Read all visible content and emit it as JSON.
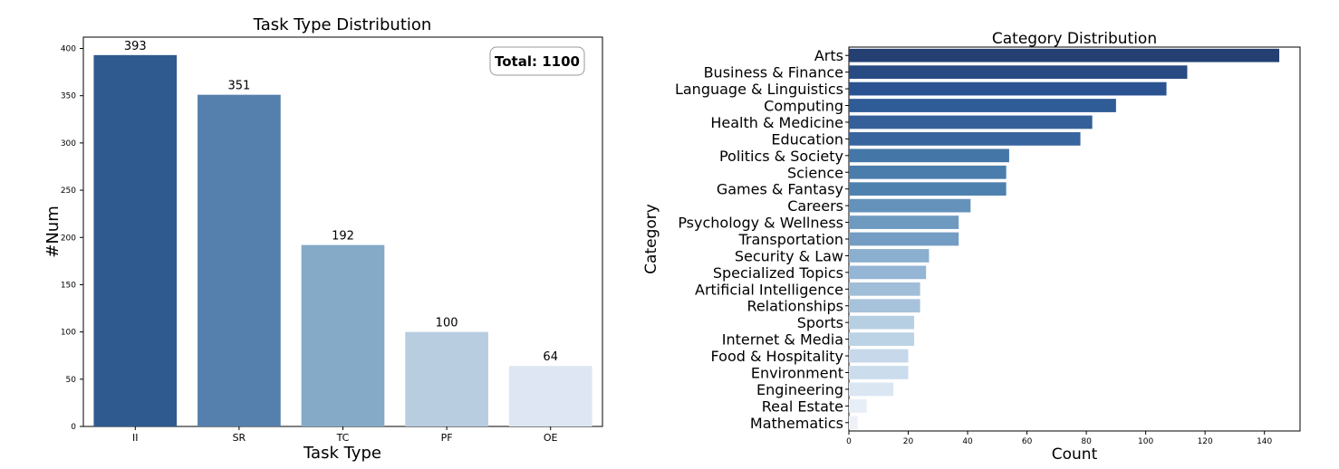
{
  "chart_data": [
    {
      "type": "bar",
      "title": "Task Type Distribution",
      "xlabel": "Task Type",
      "ylabel": "#Num",
      "categories": [
        "II",
        "SR",
        "TC",
        "PF",
        "OE"
      ],
      "values": [
        393,
        351,
        192,
        100,
        64
      ],
      "data_labels": [
        "393",
        "351",
        "192",
        "100",
        "64"
      ],
      "colors": [
        "#2f5a8f",
        "#5580ad",
        "#85aac7",
        "#b8cddf",
        "#dde6f2"
      ],
      "ylim": [
        0,
        412
      ],
      "yticks": [
        0,
        50,
        100,
        150,
        200,
        250,
        300,
        350,
        400
      ],
      "annotation": "Total: 1100",
      "annotation_position": "top-right",
      "grid": false
    },
    {
      "type": "bar",
      "orientation": "horizontal",
      "title": "Category Distribution",
      "xlabel": "Count",
      "ylabel": "Category",
      "categories": [
        "Arts",
        "Business & Finance",
        "Language & Linguistics",
        "Computing",
        "Health & Medicine",
        "Education",
        "Politics & Society",
        "Science",
        "Games & Fantasy",
        "Careers",
        "Psychology & Wellness",
        "Transportation",
        "Security & Law",
        "Specialized Topics",
        "Artificial Intelligence",
        "Relationships",
        "Sports",
        "Internet & Media",
        "Food & Hospitality",
        "Environment",
        "Engineering",
        "Real Estate",
        "Mathematics"
      ],
      "values": [
        145,
        114,
        107,
        90,
        82,
        78,
        54,
        53,
        53,
        41,
        37,
        37,
        27,
        26,
        24,
        24,
        22,
        22,
        20,
        20,
        15,
        6,
        3
      ],
      "colors": [
        "#243f72",
        "#274a82",
        "#2b5290",
        "#2f5b96",
        "#355f98",
        "#39659e",
        "#4477a8",
        "#4a7cac",
        "#4f81af",
        "#6492ba",
        "#6f9ac0",
        "#739dc2",
        "#8aafcf",
        "#94b5d3",
        "#a1bed8",
        "#a7c3db",
        "#b7cfe3",
        "#bcd3e5",
        "#c6d8e9",
        "#cbdcec",
        "#dae6f2",
        "#e6eef6",
        "#eef2f7"
      ],
      "xlim": [
        0,
        152
      ],
      "xticks": [
        0,
        20,
        40,
        60,
        80,
        100,
        120,
        140
      ],
      "grid": false
    }
  ]
}
